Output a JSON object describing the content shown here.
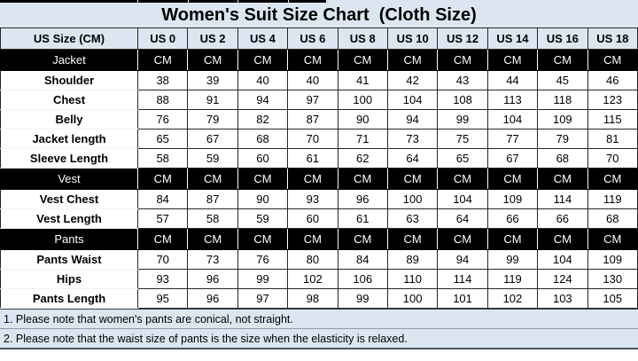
{
  "title": "Women's Suit Size Chart  (Cloth Size)",
  "chart_data": {
    "type": "table",
    "title": "Women's Suit Size Chart  (Cloth Size)",
    "header_label": "US Size (CM)",
    "columns": [
      "US 0",
      "US 2",
      "US 4",
      "US 6",
      "US 8",
      "US 10",
      "US 12",
      "US 14",
      "US 16",
      "US 18"
    ],
    "sections": [
      {
        "name": "Jacket",
        "unit": "CM",
        "rows": [
          {
            "label": "Shoulder",
            "values": [
              38,
              39,
              40,
              40,
              41,
              42,
              43,
              44,
              45,
              46
            ]
          },
          {
            "label": "Chest",
            "values": [
              88,
              91,
              94,
              97,
              100,
              104,
              108,
              113,
              118,
              123
            ]
          },
          {
            "label": "Belly",
            "values": [
              76,
              79,
              82,
              87,
              90,
              94,
              99,
              104,
              109,
              115
            ]
          },
          {
            "label": "Jacket length",
            "values": [
              65,
              67,
              68,
              70,
              71,
              73,
              75,
              77,
              79,
              81
            ]
          },
          {
            "label": "Sleeve Length",
            "values": [
              58,
              59,
              60,
              61,
              62,
              64,
              65,
              67,
              68,
              70
            ]
          }
        ]
      },
      {
        "name": "Vest",
        "unit": "CM",
        "rows": [
          {
            "label": "Vest Chest",
            "values": [
              84,
              87,
              90,
              93,
              96,
              100,
              104,
              109,
              114,
              119
            ]
          },
          {
            "label": "Vest Length",
            "values": [
              57,
              58,
              59,
              60,
              61,
              63,
              64,
              66,
              66,
              68
            ]
          }
        ]
      },
      {
        "name": "Pants",
        "unit": "CM",
        "rows": [
          {
            "label": "Pants Waist",
            "values": [
              70,
              73,
              76,
              80,
              84,
              89,
              94,
              99,
              104,
              109
            ]
          },
          {
            "label": "Hips",
            "values": [
              93,
              96,
              99,
              102,
              106,
              110,
              114,
              119,
              124,
              130
            ]
          },
          {
            "label": "Pants Length",
            "values": [
              95,
              96,
              97,
              98,
              99,
              100,
              101,
              102,
              103,
              105
            ]
          }
        ]
      }
    ],
    "notes": [
      "1. Please note that women's pants are conical, not straight.",
      "2. Please note that the waist size of pants is the size when the elasticity is relaxed."
    ]
  },
  "colors": {
    "header_bg": "#dce6f1",
    "section_bg": "#000000",
    "section_text": "#ffffff",
    "cell_bg": "#ffffff",
    "border": "#262626",
    "note_bg": "#dce6f1",
    "note_divider": "#8e9aa8",
    "text": "#000000"
  }
}
